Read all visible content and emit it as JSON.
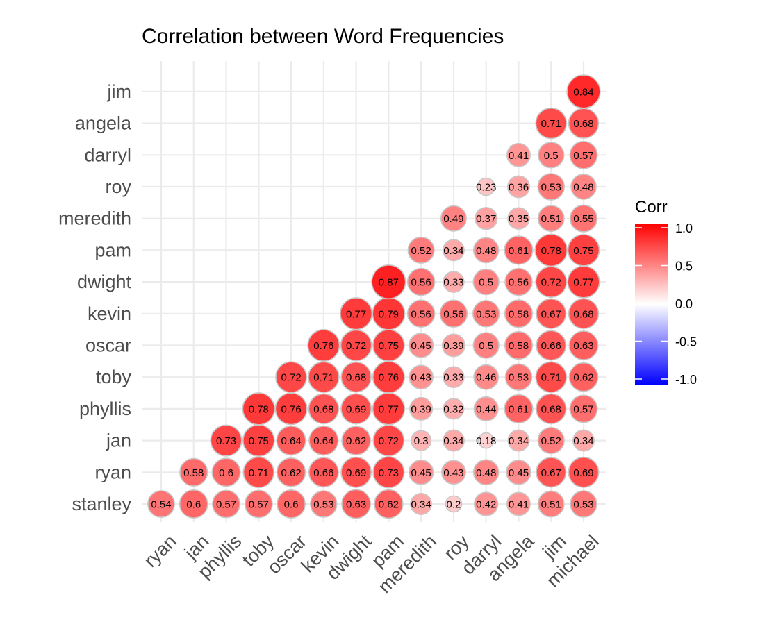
{
  "chart_data": {
    "type": "heatmap",
    "title": "Correlation between Word Frequencies",
    "x_categories": [
      "ryan",
      "jan",
      "phyllis",
      "toby",
      "oscar",
      "kevin",
      "dwight",
      "pam",
      "meredith",
      "roy",
      "darryl",
      "angela",
      "jim",
      "michael"
    ],
    "y_categories": [
      "stanley",
      "ryan",
      "jan",
      "phyllis",
      "toby",
      "oscar",
      "kevin",
      "dwight",
      "pam",
      "meredith",
      "roy",
      "darryl",
      "angela",
      "jim"
    ],
    "cells": [
      {
        "x": "ryan",
        "y": "stanley",
        "value": 0.54,
        "label": "0.54"
      },
      {
        "x": "jan",
        "y": "stanley",
        "value": 0.6,
        "label": "0.6"
      },
      {
        "x": "phyllis",
        "y": "stanley",
        "value": 0.57,
        "label": "0.57"
      },
      {
        "x": "toby",
        "y": "stanley",
        "value": 0.57,
        "label": "0.57"
      },
      {
        "x": "oscar",
        "y": "stanley",
        "value": 0.6,
        "label": "0.6"
      },
      {
        "x": "kevin",
        "y": "stanley",
        "value": 0.53,
        "label": "0.53"
      },
      {
        "x": "dwight",
        "y": "stanley",
        "value": 0.63,
        "label": "0.63"
      },
      {
        "x": "pam",
        "y": "stanley",
        "value": 0.62,
        "label": "0.62"
      },
      {
        "x": "meredith",
        "y": "stanley",
        "value": 0.34,
        "label": "0.34"
      },
      {
        "x": "roy",
        "y": "stanley",
        "value": 0.2,
        "label": "0.2"
      },
      {
        "x": "darryl",
        "y": "stanley",
        "value": 0.42,
        "label": "0.42"
      },
      {
        "x": "angela",
        "y": "stanley",
        "value": 0.41,
        "label": "0.41"
      },
      {
        "x": "jim",
        "y": "stanley",
        "value": 0.51,
        "label": "0.51"
      },
      {
        "x": "michael",
        "y": "stanley",
        "value": 0.53,
        "label": "0.53"
      },
      {
        "x": "jan",
        "y": "ryan",
        "value": 0.58,
        "label": "0.58"
      },
      {
        "x": "phyllis",
        "y": "ryan",
        "value": 0.6,
        "label": "0.6"
      },
      {
        "x": "toby",
        "y": "ryan",
        "value": 0.71,
        "label": "0.71"
      },
      {
        "x": "oscar",
        "y": "ryan",
        "value": 0.62,
        "label": "0.62"
      },
      {
        "x": "kevin",
        "y": "ryan",
        "value": 0.66,
        "label": "0.66"
      },
      {
        "x": "dwight",
        "y": "ryan",
        "value": 0.69,
        "label": "0.69"
      },
      {
        "x": "pam",
        "y": "ryan",
        "value": 0.73,
        "label": "0.73"
      },
      {
        "x": "meredith",
        "y": "ryan",
        "value": 0.45,
        "label": "0.45"
      },
      {
        "x": "roy",
        "y": "ryan",
        "value": 0.43,
        "label": "0.43"
      },
      {
        "x": "darryl",
        "y": "ryan",
        "value": 0.48,
        "label": "0.48"
      },
      {
        "x": "angela",
        "y": "ryan",
        "value": 0.45,
        "label": "0.45"
      },
      {
        "x": "jim",
        "y": "ryan",
        "value": 0.67,
        "label": "0.67"
      },
      {
        "x": "michael",
        "y": "ryan",
        "value": 0.69,
        "label": "0.69"
      },
      {
        "x": "phyllis",
        "y": "jan",
        "value": 0.73,
        "label": "0.73"
      },
      {
        "x": "toby",
        "y": "jan",
        "value": 0.75,
        "label": "0.75"
      },
      {
        "x": "oscar",
        "y": "jan",
        "value": 0.64,
        "label": "0.64"
      },
      {
        "x": "kevin",
        "y": "jan",
        "value": 0.64,
        "label": "0.64"
      },
      {
        "x": "dwight",
        "y": "jan",
        "value": 0.62,
        "label": "0.62"
      },
      {
        "x": "pam",
        "y": "jan",
        "value": 0.72,
        "label": "0.72"
      },
      {
        "x": "meredith",
        "y": "jan",
        "value": 0.3,
        "label": "0.3"
      },
      {
        "x": "roy",
        "y": "jan",
        "value": 0.34,
        "label": "0.34"
      },
      {
        "x": "darryl",
        "y": "jan",
        "value": 0.18,
        "label": "0.18"
      },
      {
        "x": "angela",
        "y": "jan",
        "value": 0.34,
        "label": "0.34"
      },
      {
        "x": "jim",
        "y": "jan",
        "value": 0.52,
        "label": "0.52"
      },
      {
        "x": "michael",
        "y": "jan",
        "value": 0.34,
        "label": "0.34"
      },
      {
        "x": "toby",
        "y": "phyllis",
        "value": 0.78,
        "label": "0.78"
      },
      {
        "x": "oscar",
        "y": "phyllis",
        "value": 0.76,
        "label": "0.76"
      },
      {
        "x": "kevin",
        "y": "phyllis",
        "value": 0.68,
        "label": "0.68"
      },
      {
        "x": "dwight",
        "y": "phyllis",
        "value": 0.69,
        "label": "0.69"
      },
      {
        "x": "pam",
        "y": "phyllis",
        "value": 0.77,
        "label": "0.77"
      },
      {
        "x": "meredith",
        "y": "phyllis",
        "value": 0.39,
        "label": "0.39"
      },
      {
        "x": "roy",
        "y": "phyllis",
        "value": 0.32,
        "label": "0.32"
      },
      {
        "x": "darryl",
        "y": "phyllis",
        "value": 0.44,
        "label": "0.44"
      },
      {
        "x": "angela",
        "y": "phyllis",
        "value": 0.61,
        "label": "0.61"
      },
      {
        "x": "jim",
        "y": "phyllis",
        "value": 0.68,
        "label": "0.68"
      },
      {
        "x": "michael",
        "y": "phyllis",
        "value": 0.57,
        "label": "0.57"
      },
      {
        "x": "oscar",
        "y": "toby",
        "value": 0.72,
        "label": "0.72"
      },
      {
        "x": "kevin",
        "y": "toby",
        "value": 0.71,
        "label": "0.71"
      },
      {
        "x": "dwight",
        "y": "toby",
        "value": 0.68,
        "label": "0.68"
      },
      {
        "x": "pam",
        "y": "toby",
        "value": 0.76,
        "label": "0.76"
      },
      {
        "x": "meredith",
        "y": "toby",
        "value": 0.43,
        "label": "0.43"
      },
      {
        "x": "roy",
        "y": "toby",
        "value": 0.33,
        "label": "0.33"
      },
      {
        "x": "darryl",
        "y": "toby",
        "value": 0.46,
        "label": "0.46"
      },
      {
        "x": "angela",
        "y": "toby",
        "value": 0.53,
        "label": "0.53"
      },
      {
        "x": "jim",
        "y": "toby",
        "value": 0.71,
        "label": "0.71"
      },
      {
        "x": "michael",
        "y": "toby",
        "value": 0.62,
        "label": "0.62"
      },
      {
        "x": "kevin",
        "y": "oscar",
        "value": 0.76,
        "label": "0.76"
      },
      {
        "x": "dwight",
        "y": "oscar",
        "value": 0.72,
        "label": "0.72"
      },
      {
        "x": "pam",
        "y": "oscar",
        "value": 0.75,
        "label": "0.75"
      },
      {
        "x": "meredith",
        "y": "oscar",
        "value": 0.45,
        "label": "0.45"
      },
      {
        "x": "roy",
        "y": "oscar",
        "value": 0.39,
        "label": "0.39"
      },
      {
        "x": "darryl",
        "y": "oscar",
        "value": 0.5,
        "label": "0.5"
      },
      {
        "x": "angela",
        "y": "oscar",
        "value": 0.58,
        "label": "0.58"
      },
      {
        "x": "jim",
        "y": "oscar",
        "value": 0.66,
        "label": "0.66"
      },
      {
        "x": "michael",
        "y": "oscar",
        "value": 0.63,
        "label": "0.63"
      },
      {
        "x": "dwight",
        "y": "kevin",
        "value": 0.77,
        "label": "0.77"
      },
      {
        "x": "pam",
        "y": "kevin",
        "value": 0.79,
        "label": "0.79"
      },
      {
        "x": "meredith",
        "y": "kevin",
        "value": 0.56,
        "label": "0.56"
      },
      {
        "x": "roy",
        "y": "kevin",
        "value": 0.56,
        "label": "0.56"
      },
      {
        "x": "darryl",
        "y": "kevin",
        "value": 0.53,
        "label": "0.53"
      },
      {
        "x": "angela",
        "y": "kevin",
        "value": 0.58,
        "label": "0.58"
      },
      {
        "x": "jim",
        "y": "kevin",
        "value": 0.67,
        "label": "0.67"
      },
      {
        "x": "michael",
        "y": "kevin",
        "value": 0.68,
        "label": "0.68"
      },
      {
        "x": "pam",
        "y": "dwight",
        "value": 0.87,
        "label": "0.87"
      },
      {
        "x": "meredith",
        "y": "dwight",
        "value": 0.56,
        "label": "0.56"
      },
      {
        "x": "roy",
        "y": "dwight",
        "value": 0.33,
        "label": "0.33"
      },
      {
        "x": "darryl",
        "y": "dwight",
        "value": 0.5,
        "label": "0.5"
      },
      {
        "x": "angela",
        "y": "dwight",
        "value": 0.56,
        "label": "0.56"
      },
      {
        "x": "jim",
        "y": "dwight",
        "value": 0.72,
        "label": "0.72"
      },
      {
        "x": "michael",
        "y": "dwight",
        "value": 0.77,
        "label": "0.77"
      },
      {
        "x": "meredith",
        "y": "pam",
        "value": 0.52,
        "label": "0.52"
      },
      {
        "x": "roy",
        "y": "pam",
        "value": 0.34,
        "label": "0.34"
      },
      {
        "x": "darryl",
        "y": "pam",
        "value": 0.48,
        "label": "0.48"
      },
      {
        "x": "angela",
        "y": "pam",
        "value": 0.61,
        "label": "0.61"
      },
      {
        "x": "jim",
        "y": "pam",
        "value": 0.78,
        "label": "0.78"
      },
      {
        "x": "michael",
        "y": "pam",
        "value": 0.75,
        "label": "0.75"
      },
      {
        "x": "roy",
        "y": "meredith",
        "value": 0.49,
        "label": "0.49"
      },
      {
        "x": "darryl",
        "y": "meredith",
        "value": 0.37,
        "label": "0.37"
      },
      {
        "x": "angela",
        "y": "meredith",
        "value": 0.35,
        "label": "0.35"
      },
      {
        "x": "jim",
        "y": "meredith",
        "value": 0.51,
        "label": "0.51"
      },
      {
        "x": "michael",
        "y": "meredith",
        "value": 0.55,
        "label": "0.55"
      },
      {
        "x": "darryl",
        "y": "roy",
        "value": 0.23,
        "label": "0.23"
      },
      {
        "x": "angela",
        "y": "roy",
        "value": 0.36,
        "label": "0.36"
      },
      {
        "x": "jim",
        "y": "roy",
        "value": 0.53,
        "label": "0.53"
      },
      {
        "x": "michael",
        "y": "roy",
        "value": 0.48,
        "label": "0.48"
      },
      {
        "x": "angela",
        "y": "darryl",
        "value": 0.41,
        "label": "0.41"
      },
      {
        "x": "jim",
        "y": "darryl",
        "value": 0.5,
        "label": "0.5"
      },
      {
        "x": "michael",
        "y": "darryl",
        "value": 0.57,
        "label": "0.57"
      },
      {
        "x": "jim",
        "y": "angela",
        "value": 0.71,
        "label": "0.71"
      },
      {
        "x": "michael",
        "y": "angela",
        "value": 0.68,
        "label": "0.68"
      },
      {
        "x": "michael",
        "y": "jim",
        "value": 0.84,
        "label": "0.84"
      }
    ],
    "legend": {
      "title": "Corr",
      "ticks": [
        "1.0",
        "0.5",
        "0.0",
        "-0.5",
        "-1.0"
      ],
      "tick_values": [
        1.0,
        0.5,
        0.0,
        -0.5,
        -1.0
      ],
      "placement": "right",
      "low_color": "#0000FF",
      "mid_color": "#FFFFFF",
      "high_color": "#FF0000"
    },
    "value_range": [
      -1.0,
      1.0
    ],
    "grid": true
  }
}
